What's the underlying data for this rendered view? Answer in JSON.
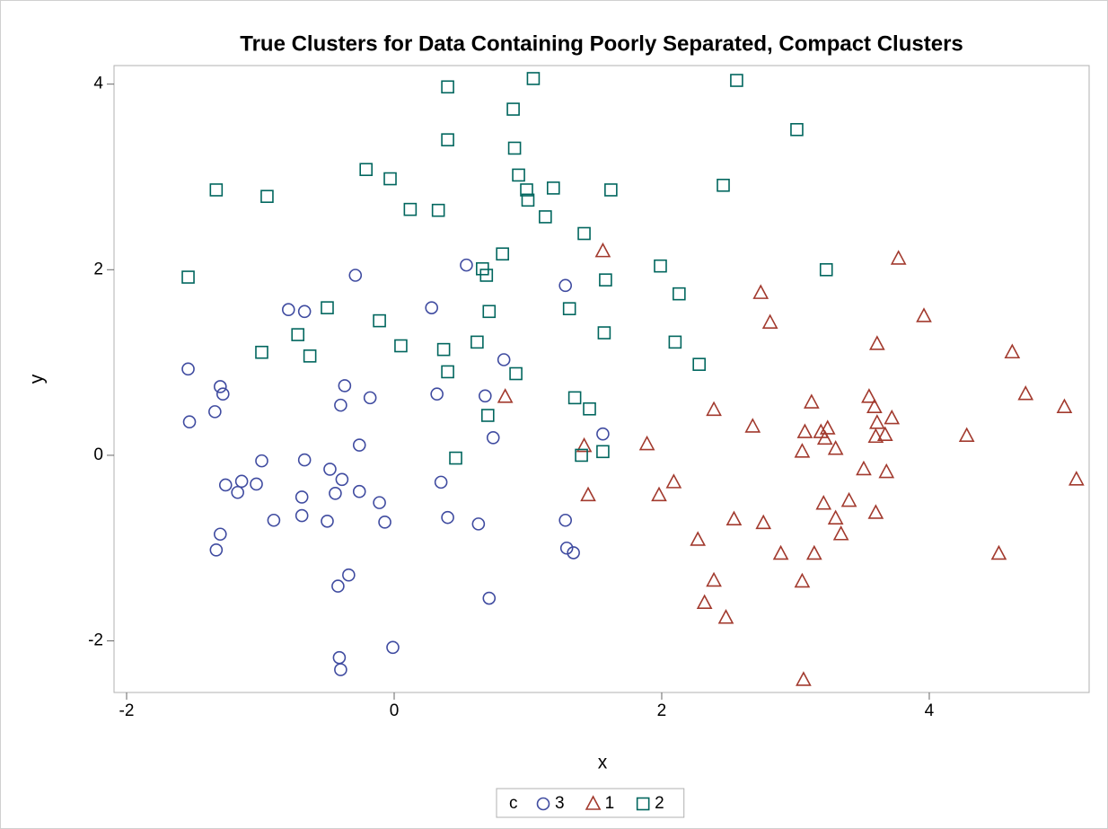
{
  "chart_data": {
    "type": "scatter",
    "title": "True Clusters for Data Containing Poorly Separated, Compact Clusters",
    "x_label": "x",
    "y_label": "y",
    "legend_title": "c",
    "legend_position": "bottom",
    "grid": false,
    "xlim": [
      -2.094,
      5.195
    ],
    "ylim": [
      -2.556,
      4.2
    ],
    "xticks": [
      -2,
      0,
      2,
      4
    ],
    "yticks": [
      -2,
      0,
      2,
      4
    ],
    "series": [
      {
        "name": "3",
        "color": "#3f4ba0",
        "marker": "circle",
        "x": [
          -1.54,
          -1.53,
          -1.3,
          -1.28,
          -1.34,
          -1.26,
          -1.17,
          -1.14,
          -1.3,
          -1.33,
          -1.03,
          -0.99,
          -0.9,
          -0.79,
          -0.67,
          -0.67,
          -0.69,
          -0.69,
          -0.5,
          -0.48,
          -0.44,
          -0.39,
          -0.4,
          -0.37,
          -0.29,
          -0.18,
          -0.26,
          -0.26,
          -0.11,
          -0.07,
          -0.34,
          -0.42,
          -0.41,
          -0.4,
          -0.01,
          0.28,
          0.32,
          0.35,
          0.4,
          0.54,
          0.63,
          0.68,
          0.74,
          0.82,
          0.71,
          1.28,
          1.28,
          1.29,
          1.34,
          1.56
        ],
        "y": [
          0.93,
          0.36,
          0.74,
          0.66,
          0.47,
          -0.32,
          -0.4,
          -0.28,
          -0.85,
          -1.02,
          -0.31,
          -0.06,
          -0.7,
          1.57,
          1.55,
          -0.05,
          -0.45,
          -0.65,
          -0.71,
          -0.15,
          -0.41,
          -0.26,
          0.54,
          0.75,
          1.94,
          0.62,
          0.11,
          -0.39,
          -0.51,
          -0.72,
          -1.29,
          -1.41,
          -2.18,
          -2.31,
          -2.07,
          1.59,
          0.66,
          -0.29,
          -0.67,
          2.05,
          -0.74,
          0.64,
          0.19,
          1.03,
          -1.54,
          1.83,
          -0.7,
          -1.0,
          -1.05,
          0.23
        ]
      },
      {
        "name": "1",
        "color": "#a23a2e",
        "marker": "triangle",
        "x": [
          0.83,
          1.56,
          1.42,
          1.45,
          1.89,
          1.98,
          2.09,
          2.27,
          2.32,
          2.39,
          2.39,
          2.48,
          2.54,
          2.68,
          2.74,
          2.76,
          2.81,
          2.89,
          3.05,
          3.05,
          3.06,
          3.07,
          3.12,
          3.14,
          3.19,
          3.21,
          3.22,
          3.24,
          3.3,
          3.3,
          3.34,
          3.4,
          3.51,
          3.55,
          3.59,
          3.6,
          3.61,
          3.6,
          3.61,
          3.67,
          3.68,
          3.72,
          3.77,
          3.96,
          4.28,
          4.52,
          4.62,
          4.72,
          5.01,
          5.1
        ],
        "y": [
          0.63,
          2.2,
          0.1,
          -0.43,
          0.12,
          -0.43,
          -0.29,
          -0.91,
          -1.59,
          0.49,
          -1.35,
          -1.75,
          -0.69,
          0.31,
          1.75,
          -0.73,
          1.43,
          -1.06,
          -1.36,
          0.04,
          -2.42,
          0.25,
          0.57,
          -1.06,
          0.25,
          -0.52,
          0.18,
          0.29,
          -0.68,
          0.07,
          -0.85,
          -0.49,
          -0.15,
          0.63,
          0.52,
          0.2,
          0.35,
          -0.62,
          1.2,
          0.22,
          -0.18,
          0.4,
          2.12,
          1.5,
          0.21,
          -1.06,
          1.11,
          0.66,
          0.52,
          -0.26
        ]
      },
      {
        "name": "2",
        "color": "#01665e",
        "marker": "square",
        "x": [
          -1.54,
          -1.33,
          -0.99,
          -0.95,
          -0.72,
          -0.63,
          -0.5,
          -0.21,
          -0.11,
          -0.03,
          0.05,
          0.12,
          0.33,
          0.37,
          0.4,
          0.4,
          0.4,
          0.46,
          0.62,
          0.66,
          0.69,
          0.7,
          0.71,
          0.81,
          0.89,
          0.9,
          0.91,
          0.93,
          0.99,
          1.0,
          1.04,
          1.13,
          1.19,
          1.31,
          1.35,
          1.4,
          1.42,
          1.46,
          1.56,
          1.57,
          1.58,
          1.62,
          1.99,
          2.1,
          2.13,
          2.28,
          2.46,
          2.56,
          3.01,
          3.23
        ],
        "y": [
          1.92,
          2.86,
          1.11,
          2.79,
          1.3,
          1.07,
          1.59,
          3.08,
          1.45,
          2.98,
          1.18,
          2.65,
          2.64,
          1.14,
          3.4,
          3.97,
          0.9,
          -0.03,
          1.22,
          2.01,
          1.94,
          0.43,
          1.55,
          2.17,
          3.73,
          3.31,
          0.88,
          3.02,
          2.86,
          2.75,
          4.06,
          2.57,
          2.88,
          1.58,
          0.62,
          0.0,
          2.39,
          0.5,
          0.04,
          1.32,
          1.89,
          2.86,
          2.04,
          1.22,
          1.74,
          0.98,
          2.91,
          4.04,
          3.51,
          2.0
        ]
      }
    ]
  }
}
